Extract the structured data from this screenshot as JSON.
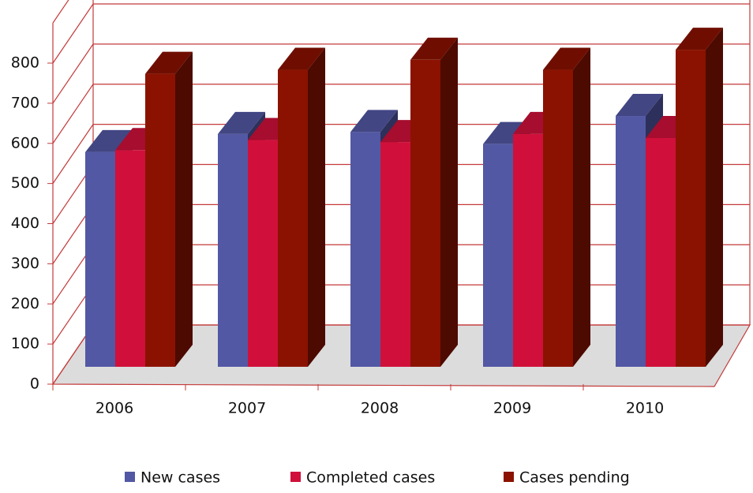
{
  "chart_data": {
    "type": "bar3d",
    "categories": [
      "2006",
      "2007",
      "2008",
      "2009",
      "2010"
    ],
    "series": [
      {
        "name": "New cases",
        "color": "#5258a4",
        "values": [
          535,
          580,
          585,
          555,
          625
        ]
      },
      {
        "name": "Completed cases",
        "color": "#d0103a",
        "values": [
          540,
          565,
          560,
          580,
          570
        ]
      },
      {
        "name": "Cases pending",
        "color": "#8b1200",
        "values": [
          730,
          740,
          765,
          740,
          790
        ]
      }
    ],
    "ylim": [
      0,
      900
    ],
    "yticks": [
      0,
      100,
      200,
      300,
      400,
      500,
      600,
      700,
      800
    ],
    "grid": true,
    "legend": "bottom"
  }
}
